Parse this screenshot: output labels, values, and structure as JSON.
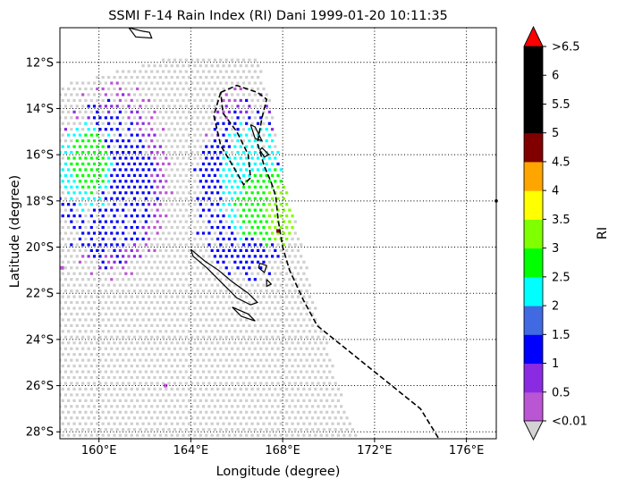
{
  "chart_data": {
    "type": "heatmap",
    "title": "SSMI F-14 Rain Index (RI) Dani 1999-01-20 10:11:35",
    "xlabel": "Longitude (degree)",
    "ylabel": "Latitude (degree)",
    "colorbar_label": "RI",
    "xlim": [
      158.3,
      177.3
    ],
    "ylim": [
      -28.3,
      -10.5
    ],
    "x_ticks": [
      {
        "value": 160,
        "label": "160°E"
      },
      {
        "value": 164,
        "label": "164°E"
      },
      {
        "value": 168,
        "label": "168°E"
      },
      {
        "value": 172,
        "label": "172°E"
      },
      {
        "value": 176,
        "label": "176°E"
      }
    ],
    "y_ticks": [
      {
        "value": -12,
        "label": "12°S"
      },
      {
        "value": -14,
        "label": "14°S"
      },
      {
        "value": -16,
        "label": "16°S"
      },
      {
        "value": -18,
        "label": "18°S"
      },
      {
        "value": -20,
        "label": "20°S"
      },
      {
        "value": -22,
        "label": "22°S"
      },
      {
        "value": -24,
        "label": "24°S"
      },
      {
        "value": -26,
        "label": "26°S"
      },
      {
        "value": -28,
        "label": "28°S"
      }
    ],
    "grid": true,
    "colorbar": {
      "boundaries": [
        "<0.01",
        "0.5",
        "1",
        "1.5",
        "2",
        "2.5",
        "3",
        "3.5",
        "4",
        "4.5",
        "5",
        "5.5",
        "6",
        ">6.5"
      ],
      "colors": [
        "#ba55d3",
        "#8a2be2",
        "#0000ff",
        "#4169e1",
        "#00ffff",
        "#00ff00",
        "#7fff00",
        "#ffff00",
        "#ffa500",
        "#800000",
        "#000000",
        "#000000",
        "#000000"
      ],
      "under_color": "#d3d3d3",
      "over_color": "#ff0000"
    },
    "no_rain_color": "#cfcfcf",
    "swath": {
      "top_lat": -11.9,
      "bottom_lat": -28.3,
      "left_lon": 158.3,
      "right_edge": [
        [
          -11.9,
          166.9
        ],
        [
          -13.5,
          167.4
        ],
        [
          -17.0,
          168.0
        ],
        [
          -19.0,
          168.6
        ],
        [
          -20.6,
          169.0
        ],
        [
          -22.5,
          169.4
        ],
        [
          -24.0,
          169.9
        ],
        [
          -26.0,
          170.4
        ],
        [
          -28.3,
          171.3
        ]
      ]
    },
    "rain_regions": [
      {
        "level": 0,
        "lon": [
          158.3,
          163.0
        ],
        "lat": [
          -21.0,
          -13.2
        ]
      },
      {
        "level": 0,
        "lon": [
          164.5,
          167.5
        ],
        "lat": [
          -21.0,
          -13.3
        ]
      },
      {
        "level": 1,
        "lon": [
          158.3,
          162.6
        ],
        "lat": [
          -20.8,
          -13.5
        ]
      },
      {
        "level": 1,
        "lon": [
          164.5,
          168.2
        ],
        "lat": [
          -20.8,
          -13.6
        ]
      },
      {
        "level": 2,
        "lon": [
          158.3,
          162.3
        ],
        "lat": [
          -20.6,
          -14.0
        ]
      },
      {
        "level": 2,
        "lon": [
          164.3,
          168.4
        ],
        "lat": [
          -21.2,
          -14.0
        ]
      },
      {
        "level": 4,
        "lon": [
          158.3,
          160.6
        ],
        "lat": [
          -18.6,
          -14.5
        ]
      },
      {
        "level": 4,
        "lon": [
          165.2,
          168.0
        ],
        "lat": [
          -19.6,
          -14.6
        ]
      },
      {
        "level": 5,
        "lon": [
          158.7,
          160.4
        ],
        "lat": [
          -17.6,
          -15.0
        ]
      },
      {
        "level": 5,
        "lon": [
          166.0,
          168.3
        ],
        "lat": [
          -19.8,
          -16.6
        ]
      },
      {
        "level": 6,
        "lon": [
          167.3,
          168.5
        ],
        "lat": [
          -20.0,
          -17.2
        ]
      }
    ],
    "isolated_cells": [
      {
        "lon": 162.9,
        "lat": -26.0,
        "level": 0
      },
      {
        "lon": 167.8,
        "lat": -19.3,
        "level": 9
      },
      {
        "lon": 158.4,
        "lat": -20.9,
        "level": 0
      }
    ],
    "coastlines": [
      [
        [
          161.3,
          -10.5
        ],
        [
          161.6,
          -10.9
        ],
        [
          162.3,
          -10.95
        ],
        [
          162.2,
          -10.7
        ],
        [
          161.9,
          -10.65
        ],
        [
          161.3,
          -10.5
        ]
      ],
      [
        [
          166.6,
          -14.7
        ],
        [
          166.8,
          -15.3
        ],
        [
          167.1,
          -15.4
        ],
        [
          166.8,
          -14.8
        ],
        [
          166.6,
          -14.7
        ]
      ],
      [
        [
          167.0,
          -15.8
        ],
        [
          167.2,
          -16.1
        ],
        [
          167.4,
          -16.0
        ],
        [
          167.1,
          -15.7
        ],
        [
          167.0,
          -15.8
        ]
      ],
      [
        [
          164.0,
          -20.1
        ],
        [
          164.6,
          -20.6
        ],
        [
          165.2,
          -21.0
        ],
        [
          165.8,
          -21.5
        ],
        [
          166.5,
          -22.0
        ],
        [
          166.9,
          -22.4
        ],
        [
          166.6,
          -22.5
        ],
        [
          166.0,
          -22.2
        ],
        [
          165.4,
          -21.6
        ],
        [
          164.7,
          -20.9
        ],
        [
          164.1,
          -20.4
        ],
        [
          164.0,
          -20.1
        ]
      ],
      [
        [
          167.0,
          -20.7
        ],
        [
          167.3,
          -20.8
        ],
        [
          167.2,
          -21.1
        ],
        [
          166.95,
          -20.9
        ],
        [
          167.0,
          -20.7
        ]
      ],
      [
        [
          167.3,
          -21.4
        ],
        [
          167.5,
          -21.6
        ],
        [
          167.3,
          -21.7
        ],
        [
          167.3,
          -21.4
        ]
      ],
      [
        [
          165.8,
          -22.6
        ],
        [
          166.2,
          -23.0
        ],
        [
          166.8,
          -23.2
        ],
        [
          166.5,
          -22.9
        ],
        [
          165.8,
          -22.6
        ]
      ]
    ],
    "eez_boundary": [
      [
        165.3,
        -13.3
      ],
      [
        166.0,
        -13.0
      ],
      [
        166.9,
        -13.3
      ],
      [
        167.3,
        -13.6
      ],
      [
        167.1,
        -14.4
      ],
      [
        166.9,
        -15.5
      ],
      [
        167.2,
        -16.5
      ],
      [
        167.5,
        -17.2
      ],
      [
        167.7,
        -17.8
      ],
      [
        167.8,
        -18.8
      ],
      [
        168.0,
        -20.0
      ],
      [
        168.3,
        -21.0
      ],
      [
        168.9,
        -22.3
      ],
      [
        169.5,
        -23.4
      ],
      [
        171.0,
        -24.6
      ],
      [
        172.5,
        -25.8
      ],
      [
        174.0,
        -27.0
      ],
      [
        174.8,
        -28.3
      ]
    ],
    "eez_boundary_2": [
      [
        165.3,
        -13.3
      ],
      [
        165.0,
        -14.3
      ],
      [
        165.3,
        -15.6
      ],
      [
        165.9,
        -16.6
      ],
      [
        166.3,
        -17.3
      ],
      [
        166.6,
        -17.0
      ],
      [
        166.5,
        -16.0
      ],
      [
        166.0,
        -15.0
      ],
      [
        165.4,
        -14.2
      ],
      [
        165.3,
        -13.3
      ]
    ]
  }
}
